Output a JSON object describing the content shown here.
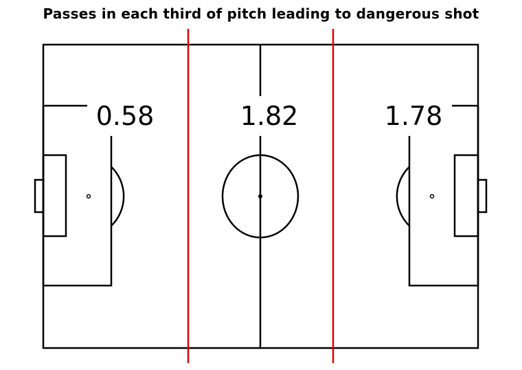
{
  "title": "Passes in each third of pitch leading to dangerous shot",
  "thirds": [
    {
      "label": "0.58"
    },
    {
      "label": "1.82"
    },
    {
      "label": "1.78"
    }
  ],
  "colors": {
    "pitch_lines": "#000000",
    "third_dividers": "#e00000"
  }
}
